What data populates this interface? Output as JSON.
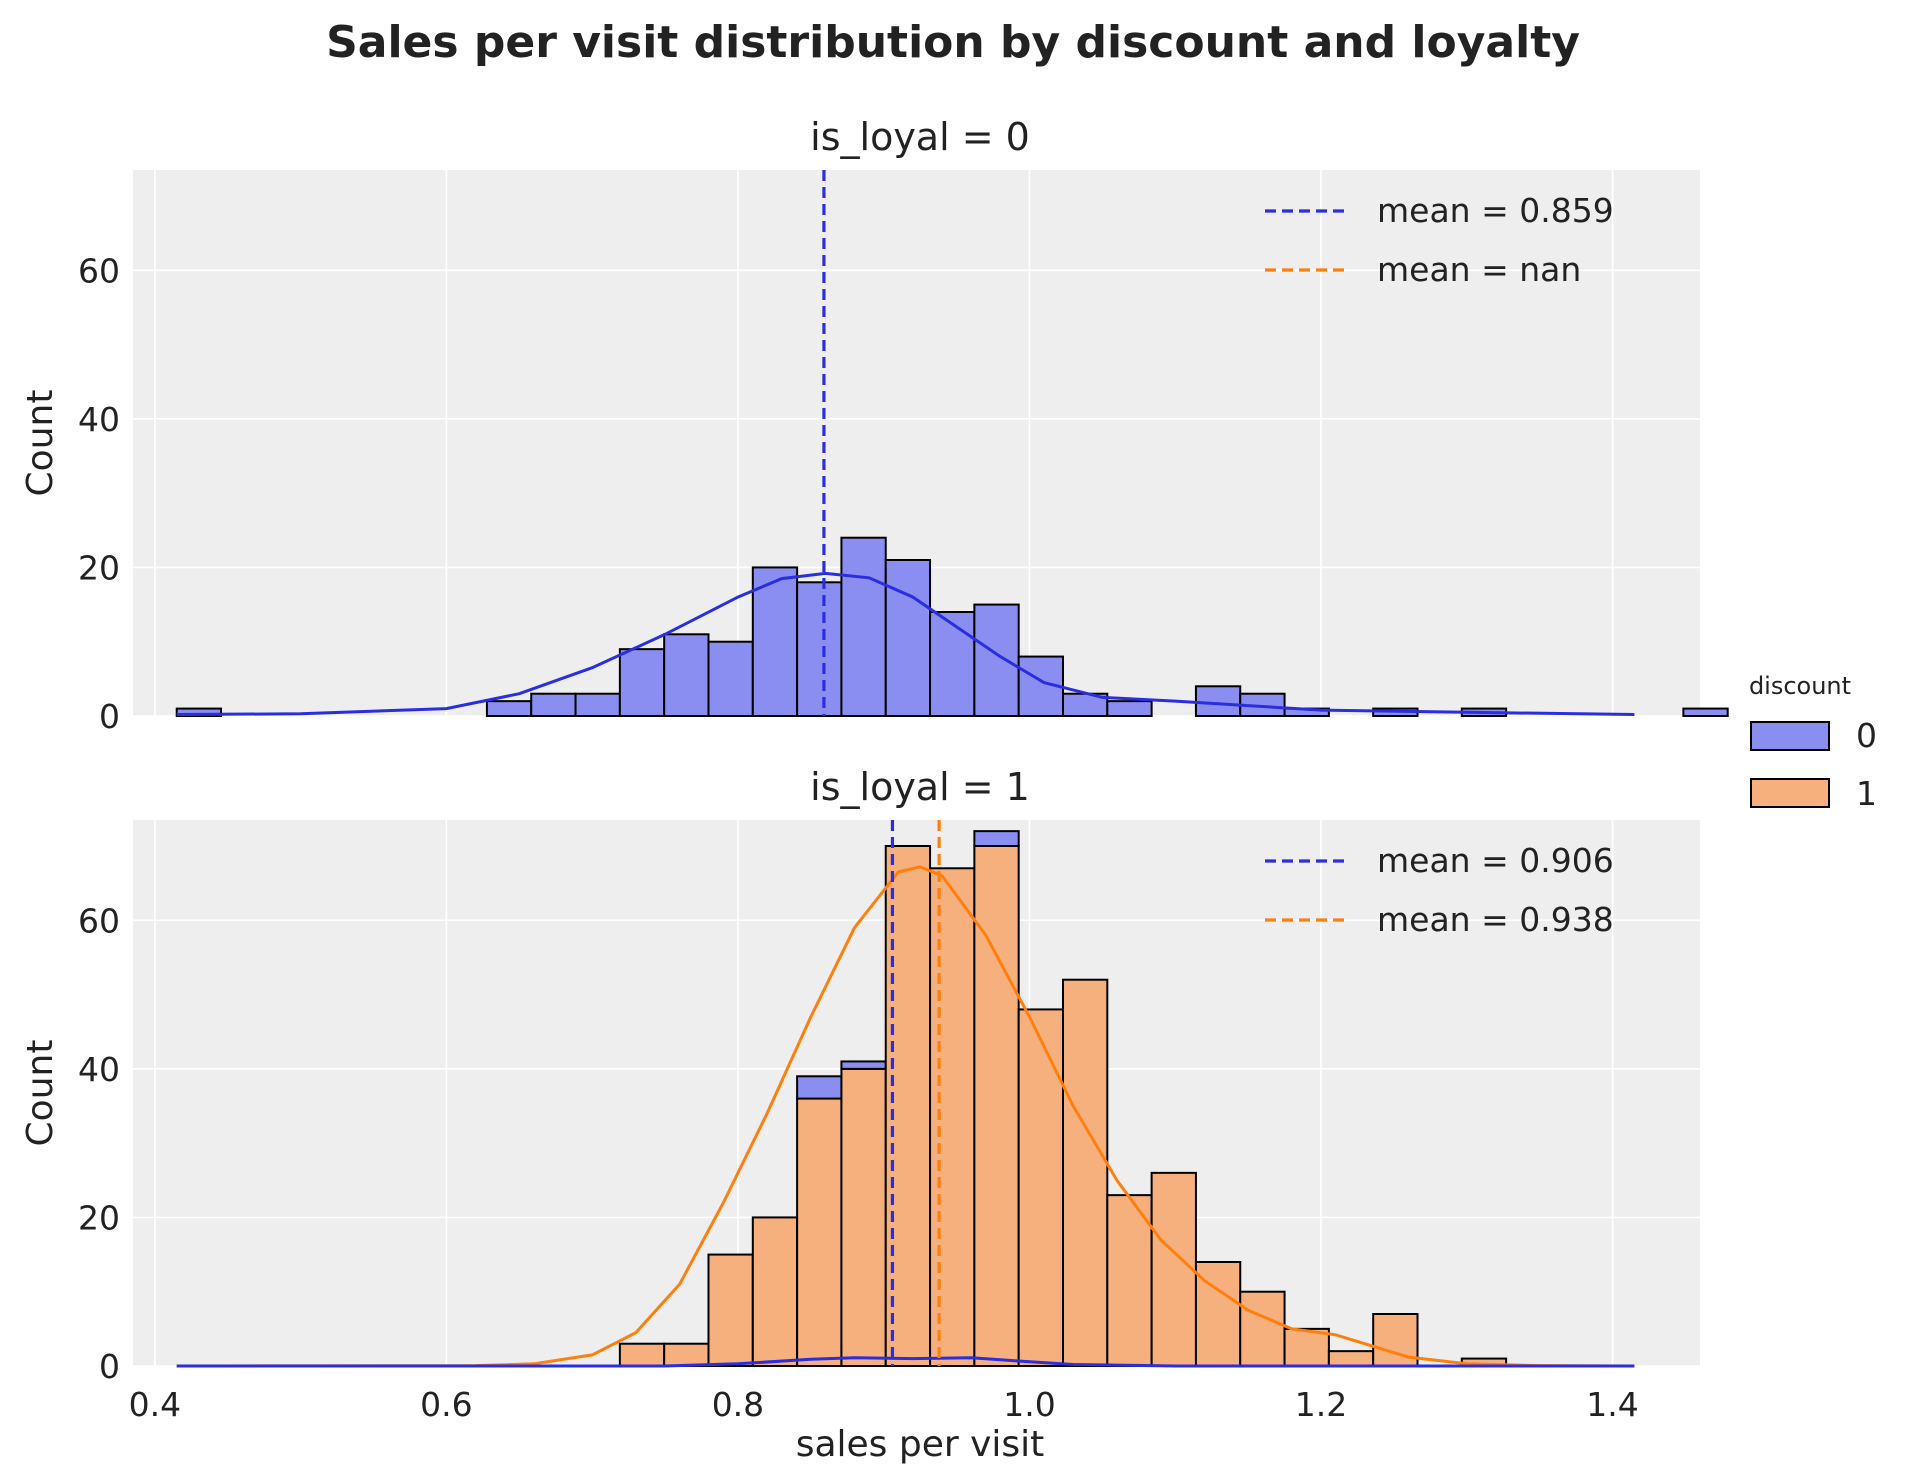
{
  "figure": {
    "title": "Sales per visit distribution by discount and loyalty"
  },
  "legend": {
    "title": "discount",
    "placement": "right",
    "items": [
      {
        "label": "0",
        "color": "#7b7ff0"
      },
      {
        "label": "1",
        "color": "#f6b07e"
      }
    ]
  },
  "chart_data": {
    "type": "bar",
    "subtype": "stacked histogram with kde",
    "xlabel": "sales per visit",
    "ylabel": "Count",
    "xlim": [
      0.385,
      1.46
    ],
    "ylim": [
      0,
      73.5
    ],
    "xticks": [
      "0.4",
      "0.6",
      "0.8",
      "1.0",
      "1.2",
      "1.4"
    ],
    "yticks": [
      "0",
      "20",
      "40",
      "60"
    ],
    "grid": true,
    "bin_start": 0.415,
    "bin_width": 0.0304,
    "colors": {
      "discount_0": "#2a2de0",
      "discount_1": "#ff7f0e"
    },
    "panels": [
      {
        "title": "is_loyal = 0",
        "counts_discount_0": [
          1,
          0,
          0,
          0,
          0,
          0,
          0,
          2,
          3,
          3,
          9,
          11,
          10,
          20,
          18,
          24,
          21,
          14,
          15,
          8,
          3,
          2,
          0,
          4,
          3,
          1,
          0,
          1,
          0,
          1,
          0,
          0,
          0,
          0,
          1
        ],
        "counts_discount_1": [],
        "means": [
          {
            "label": "mean =  0.859",
            "value": 0.859,
            "series": "0"
          },
          {
            "label": "mean =  nan",
            "value": null,
            "series": "1"
          }
        ],
        "kde_discount_0": [
          [
            0.415,
            0.2
          ],
          [
            0.5,
            0.3
          ],
          [
            0.6,
            1.0
          ],
          [
            0.65,
            3.0
          ],
          [
            0.7,
            6.5
          ],
          [
            0.75,
            11.0
          ],
          [
            0.8,
            16.0
          ],
          [
            0.83,
            18.5
          ],
          [
            0.86,
            19.2
          ],
          [
            0.89,
            18.6
          ],
          [
            0.92,
            16.0
          ],
          [
            0.95,
            12.0
          ],
          [
            0.98,
            8.0
          ],
          [
            1.01,
            4.5
          ],
          [
            1.05,
            2.5
          ],
          [
            1.1,
            2.0
          ],
          [
            1.15,
            1.4
          ],
          [
            1.2,
            0.8
          ],
          [
            1.3,
            0.5
          ],
          [
            1.415,
            0.2
          ]
        ],
        "kde_discount_1": []
      },
      {
        "title": "is_loyal = 1",
        "counts_discount_0": [
          0,
          0,
          0,
          0,
          0,
          0,
          0,
          0,
          0,
          0,
          0,
          0,
          0,
          0,
          3,
          1,
          0,
          0,
          2,
          0,
          0,
          0,
          0,
          0,
          0,
          0,
          0,
          0,
          0,
          0,
          0,
          0,
          0,
          0,
          0
        ],
        "counts_discount_1": [
          0,
          0,
          0,
          0,
          0,
          0,
          0,
          0,
          0,
          0,
          3,
          3,
          15,
          20,
          36,
          40,
          70,
          67,
          70,
          48,
          52,
          23,
          26,
          14,
          10,
          5,
          2,
          7,
          0,
          1,
          0,
          0,
          0,
          0,
          0
        ],
        "means": [
          {
            "label": "mean =  0.906",
            "value": 0.906,
            "series": "0"
          },
          {
            "label": "mean =  0.938",
            "value": 0.938,
            "series": "1"
          }
        ],
        "kde_discount_0": [
          [
            0.415,
            0
          ],
          [
            0.75,
            0
          ],
          [
            0.8,
            0.3
          ],
          [
            0.85,
            0.9
          ],
          [
            0.88,
            1.1
          ],
          [
            0.92,
            1.0
          ],
          [
            0.96,
            1.1
          ],
          [
            0.99,
            0.7
          ],
          [
            1.03,
            0.2
          ],
          [
            1.1,
            0
          ],
          [
            1.415,
            0
          ]
        ],
        "kde_discount_1": [
          [
            0.415,
            0
          ],
          [
            0.62,
            0.05
          ],
          [
            0.66,
            0.3
          ],
          [
            0.7,
            1.5
          ],
          [
            0.73,
            4.5
          ],
          [
            0.76,
            11.0
          ],
          [
            0.79,
            22.0
          ],
          [
            0.82,
            34.0
          ],
          [
            0.85,
            47.0
          ],
          [
            0.88,
            59.0
          ],
          [
            0.91,
            66.5
          ],
          [
            0.925,
            67.2
          ],
          [
            0.94,
            66.0
          ],
          [
            0.97,
            58.0
          ],
          [
            1.0,
            47.0
          ],
          [
            1.03,
            35.0
          ],
          [
            1.06,
            25.0
          ],
          [
            1.09,
            17.0
          ],
          [
            1.12,
            11.5
          ],
          [
            1.15,
            7.5
          ],
          [
            1.18,
            5.0
          ],
          [
            1.21,
            4.2
          ],
          [
            1.23,
            3.0
          ],
          [
            1.26,
            1.2
          ],
          [
            1.3,
            0.3
          ],
          [
            1.35,
            0.05
          ],
          [
            1.415,
            0
          ]
        ]
      }
    ]
  }
}
